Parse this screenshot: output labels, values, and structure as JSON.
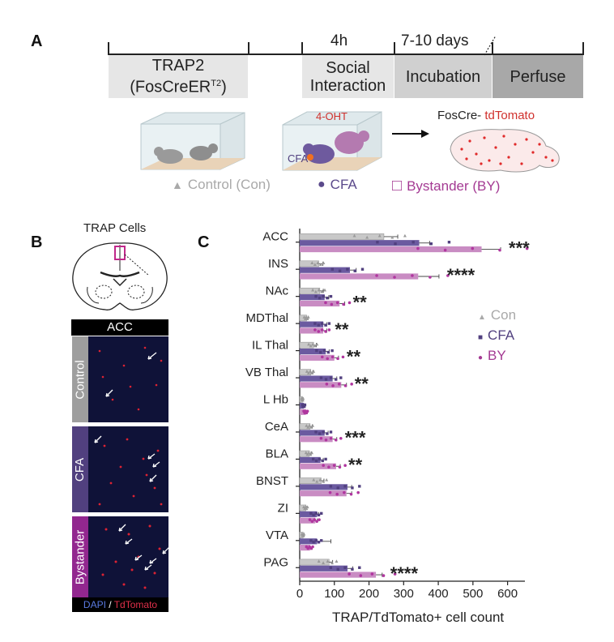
{
  "panel_a": {
    "letter": "A",
    "timeline": {
      "above_labels": [
        "4h",
        "7-10 days"
      ],
      "boxes": [
        {
          "line1": "TRAP2",
          "line2": "(FosCreER",
          "sup": "T2",
          "line2_end": ")"
        },
        {
          "line1": "Social",
          "line2": "Interaction"
        },
        {
          "line1": "Incubation"
        },
        {
          "line1": "Perfuse"
        }
      ]
    },
    "illustration": {
      "drug_label": "4-OHT",
      "injury_label": "CFA",
      "reporter_prefix": "FosCre- ",
      "reporter_name": "tdTomato"
    },
    "legend": [
      {
        "symbol": "▲",
        "label": "Control (Con)",
        "color": "#a9a9a9"
      },
      {
        "symbol": "●",
        "label": "CFA",
        "color": "#5b4a8b"
      },
      {
        "symbol": "□",
        "label": "Bystander (BY)",
        "color": "#a43a93"
      }
    ]
  },
  "panel_b": {
    "letter": "B",
    "diagram_title": "TRAP Cells",
    "region_title": "ACC",
    "images": [
      {
        "label": "Control",
        "color": "#9e9e9e"
      },
      {
        "label": "CFA",
        "color": "#51407f"
      },
      {
        "label": "Bystander",
        "color": "#92278f"
      }
    ],
    "stain_legend": {
      "dapi": "DAPI",
      "sep": " / ",
      "tdtomato": "TdTomato"
    }
  },
  "chart_data": {
    "letter": "C",
    "type": "bar",
    "orientation": "horizontal",
    "categories": [
      "ACC",
      "INS",
      "NAc",
      "MDThal",
      "IL Thal",
      "VB Thal",
      "L Hb",
      "CeA",
      "BLA",
      "BNST",
      "ZI",
      "VTA",
      "PAG"
    ],
    "series": [
      {
        "name": "Con",
        "color": "#c8c8c8",
        "values": [
          243,
          55,
          58,
          20,
          40,
          32,
          8,
          30,
          28,
          62,
          18,
          10,
          85
        ]
      },
      {
        "name": "CFA",
        "color": "#6b5aa0",
        "values": [
          345,
          145,
          72,
          68,
          75,
          95,
          12,
          72,
          60,
          138,
          50,
          50,
          138
        ]
      },
      {
        "name": "BY",
        "color": "#c98cc3",
        "values": [
          525,
          342,
          115,
          68,
          100,
          120,
          18,
          95,
          105,
          135,
          45,
          30,
          220
        ]
      }
    ],
    "errors": {
      "Con": [
        40,
        12,
        10,
        4,
        8,
        6,
        2,
        6,
        5,
        8,
        3,
        3,
        10
      ],
      "CFA": [
        30,
        18,
        12,
        10,
        10,
        12,
        3,
        10,
        8,
        12,
        5,
        40,
        15
      ],
      "BY": [
        55,
        60,
        15,
        10,
        12,
        15,
        4,
        12,
        12,
        15,
        6,
        6,
        18
      ]
    },
    "significance": [
      "***",
      "****",
      "**",
      "**",
      "**",
      "**",
      "",
      "***",
      "**",
      "",
      "",
      "",
      "****"
    ],
    "xlabel": "TRAP/TdTomato+ cell count",
    "xlim": [
      0,
      650
    ],
    "xticks": [
      0,
      100,
      200,
      300,
      400,
      500,
      600
    ],
    "legend": [
      "Con",
      "CFA",
      "BY"
    ],
    "legend_symbols": [
      "▲",
      "■",
      "●"
    ],
    "legend_position": "right"
  }
}
